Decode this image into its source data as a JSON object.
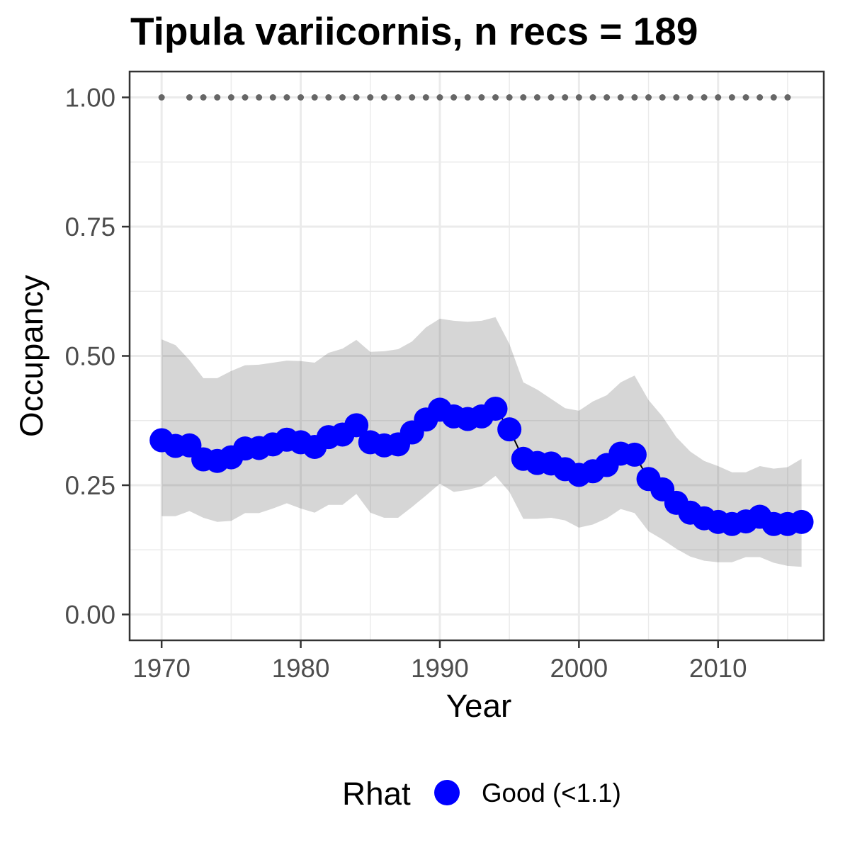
{
  "chart_data": {
    "type": "line",
    "title": "Tipula variicornis, n recs = 189",
    "xlabel": "Year",
    "ylabel": "Occupancy",
    "xlim": [
      1967.7,
      2017.6
    ],
    "ylim": [
      -0.05,
      1.05
    ],
    "x_ticks": [
      "1970",
      "1980",
      "1990",
      "2000",
      "2010"
    ],
    "y_ticks": [
      "0.00",
      "0.25",
      "0.50",
      "0.75",
      "1.00"
    ],
    "grid": true,
    "legend": {
      "title": "Rhat",
      "position": "bottom"
    },
    "colors": {
      "line": "#000000",
      "ribbon": "#333333",
      "markers": "#666666"
    },
    "x": [
      1970,
      1971,
      1972,
      1973,
      1974,
      1975,
      1976,
      1977,
      1978,
      1979,
      1980,
      1981,
      1982,
      1983,
      1984,
      1985,
      1986,
      1987,
      1988,
      1989,
      1990,
      1991,
      1992,
      1993,
      1994,
      1995,
      1996,
      1997,
      1998,
      1999,
      2000,
      2001,
      2002,
      2003,
      2004,
      2005,
      2006,
      2007,
      2008,
      2009,
      2010,
      2011,
      2012,
      2013,
      2014,
      2015,
      2016
    ],
    "series": [
      {
        "name": "Good (<1.1)",
        "color": "#0000FF",
        "values": [
          0.337,
          0.326,
          0.327,
          0.3,
          0.297,
          0.304,
          0.321,
          0.322,
          0.329,
          0.338,
          0.333,
          0.324,
          0.343,
          0.348,
          0.366,
          0.333,
          0.327,
          0.329,
          0.352,
          0.377,
          0.396,
          0.383,
          0.378,
          0.383,
          0.398,
          0.358,
          0.301,
          0.293,
          0.292,
          0.281,
          0.27,
          0.277,
          0.289,
          0.311,
          0.309,
          0.262,
          0.242,
          0.216,
          0.197,
          0.186,
          0.179,
          0.175,
          0.18,
          0.189,
          0.175,
          0.175,
          0.179
        ],
        "lower": [
          0.19,
          0.19,
          0.2,
          0.187,
          0.179,
          0.181,
          0.196,
          0.196,
          0.205,
          0.215,
          0.205,
          0.197,
          0.212,
          0.212,
          0.233,
          0.197,
          0.187,
          0.187,
          0.208,
          0.23,
          0.253,
          0.237,
          0.241,
          0.248,
          0.268,
          0.237,
          0.185,
          0.185,
          0.187,
          0.182,
          0.168,
          0.174,
          0.186,
          0.204,
          0.196,
          0.161,
          0.145,
          0.127,
          0.112,
          0.104,
          0.101,
          0.101,
          0.111,
          0.111,
          0.1,
          0.094,
          0.092
        ],
        "upper": [
          0.532,
          0.521,
          0.492,
          0.457,
          0.457,
          0.471,
          0.482,
          0.483,
          0.487,
          0.491,
          0.49,
          0.487,
          0.506,
          0.514,
          0.531,
          0.508,
          0.509,
          0.513,
          0.528,
          0.555,
          0.572,
          0.568,
          0.566,
          0.568,
          0.575,
          0.523,
          0.449,
          0.435,
          0.417,
          0.399,
          0.394,
          0.412,
          0.424,
          0.449,
          0.462,
          0.415,
          0.383,
          0.343,
          0.315,
          0.297,
          0.287,
          0.275,
          0.275,
          0.287,
          0.282,
          0.285,
          0.301
        ]
      }
    ],
    "markers": {
      "y": 1.0,
      "x": [
        1970,
        1972,
        1973,
        1974,
        1975,
        1976,
        1977,
        1978,
        1979,
        1980,
        1981,
        1982,
        1983,
        1984,
        1985,
        1986,
        1987,
        1988,
        1989,
        1990,
        1991,
        1992,
        1993,
        1994,
        1995,
        1996,
        1997,
        1998,
        1999,
        2000,
        2001,
        2002,
        2003,
        2004,
        2005,
        2006,
        2007,
        2008,
        2009,
        2010,
        2011,
        2012,
        2013,
        2014,
        2015
      ]
    }
  }
}
